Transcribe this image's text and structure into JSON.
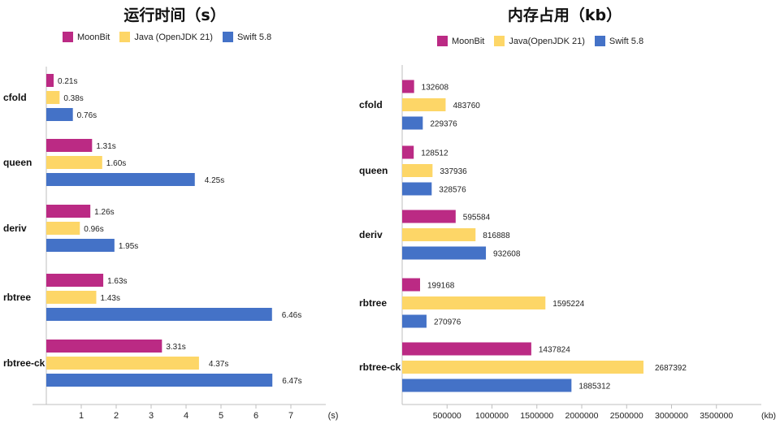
{
  "colors": {
    "moonbit": "#BB2A84",
    "java": "#FDD667",
    "swift": "#4472C7",
    "axis": "#bfbfbf"
  },
  "chart_data": [
    {
      "type": "bar",
      "orientation": "horizontal",
      "title": "运行时间（s）",
      "unit_label": "(s)",
      "categories": [
        "cfold",
        "queen",
        "deriv",
        "rbtree",
        "rbtree-ck"
      ],
      "series": [
        {
          "name": "MoonBit",
          "values": [
            0.21,
            1.31,
            1.26,
            1.63,
            3.31
          ],
          "labels": [
            "0.21s",
            "1.31s",
            "1.26s",
            "1.63s",
            "3.31s"
          ]
        },
        {
          "name": "Java (OpenJDK 21)",
          "values": [
            0.38,
            1.6,
            0.96,
            1.43,
            4.37
          ],
          "labels": [
            "0.38s",
            "1.60s",
            "0.96s",
            "1.43s",
            "4.37s"
          ]
        },
        {
          "name": "Swift 5.8",
          "values": [
            0.76,
            4.25,
            1.95,
            6.46,
            6.47
          ],
          "labels": [
            "0.76s",
            "4.25s",
            "1.95s",
            "6.46s",
            "6.47s"
          ]
        }
      ],
      "xlim": [
        0,
        8
      ],
      "ticks": [
        1,
        2,
        3,
        4,
        5,
        6,
        7
      ],
      "tick_labels": [
        "1",
        "2",
        "3",
        "4",
        "5",
        "6",
        "7"
      ],
      "grid": false,
      "legend": "top"
    },
    {
      "type": "bar",
      "orientation": "horizontal",
      "title": "内存占用（kb）",
      "unit_label": "(kb)",
      "categories": [
        "cfold",
        "queen",
        "deriv",
        "rbtree",
        "rbtree-ck"
      ],
      "series": [
        {
          "name": "MoonBit",
          "values": [
            132608,
            128512,
            595584,
            199168,
            1437824
          ],
          "labels": [
            "132608",
            "128512",
            "595584",
            "199168",
            "1437824"
          ]
        },
        {
          "name": "Java(OpenJDK 21)",
          "values": [
            483760,
            337936,
            816888,
            1595224,
            2687392
          ],
          "labels": [
            "483760",
            "337936",
            "816888",
            "1595224",
            "2687392"
          ]
        },
        {
          "name": "Swift 5.8",
          "values": [
            229376,
            328576,
            932608,
            270976,
            1885312
          ],
          "labels": [
            "229376",
            "328576",
            "932608",
            "270976",
            "1885312"
          ]
        }
      ],
      "xlim": [
        0,
        4000000
      ],
      "ticks": [
        500000,
        1000000,
        1500000,
        2000000,
        2500000,
        3000000,
        3500000
      ],
      "tick_labels": [
        "500000",
        "1000000",
        "1500000",
        "2000000",
        "2500000",
        "3000000",
        "3500000"
      ],
      "grid": false,
      "legend": "top"
    }
  ]
}
